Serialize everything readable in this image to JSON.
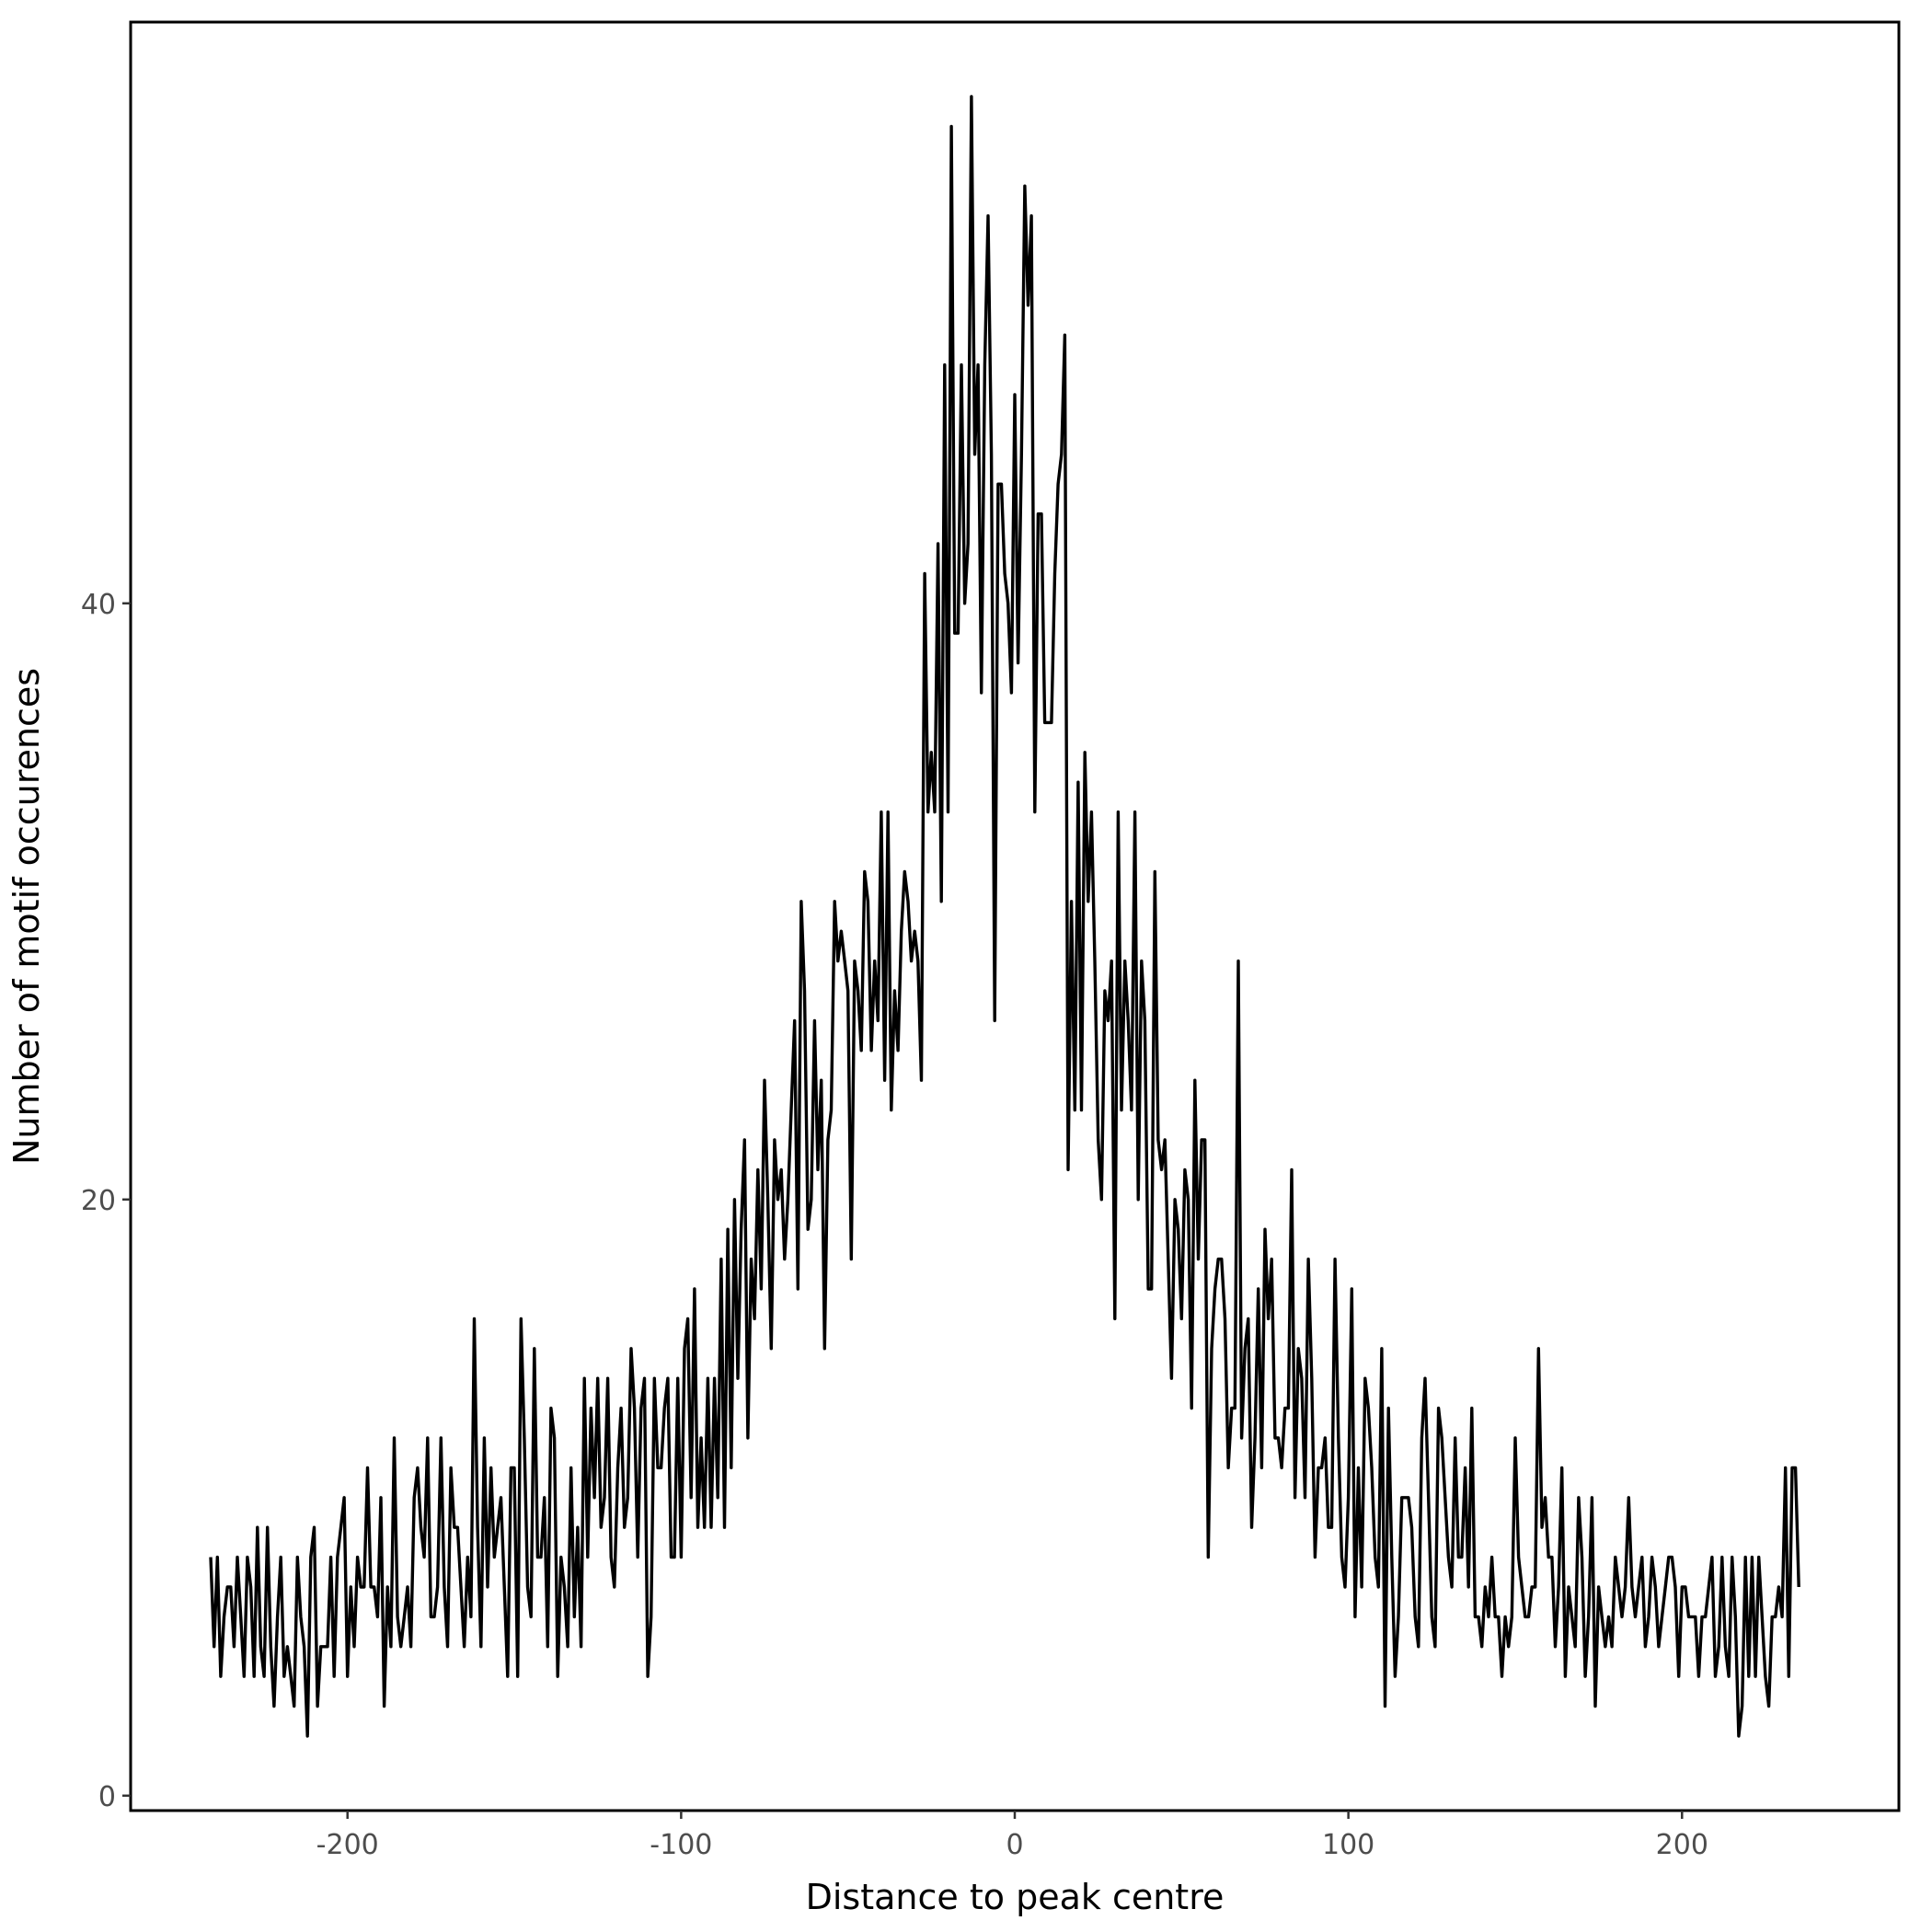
{
  "chart_data": {
    "type": "line",
    "title": "",
    "xlabel": "Distance to peak centre",
    "ylabel": "Number of motif occurences",
    "xlim": [
      -265,
      265
    ],
    "ylim": [
      -0.5,
      59.5
    ],
    "xticks": [
      -200,
      -100,
      0,
      100,
      200
    ],
    "xtick_labels": [
      "-200",
      "-100",
      "0",
      "100",
      "200"
    ],
    "yticks": [
      0,
      20,
      40
    ],
    "ytick_labels": [
      "0",
      "20",
      "40"
    ],
    "grid": false,
    "legend": "none",
    "line_color": "#000000",
    "x_start": -241,
    "x_step": 1,
    "y": [
      8,
      5,
      8,
      4,
      6,
      7,
      7,
      5,
      8,
      6,
      4,
      8,
      7,
      4,
      9,
      5,
      4,
      9,
      5,
      3,
      6,
      8,
      4,
      5,
      4,
      3,
      8,
      6,
      5,
      2,
      8,
      9,
      3,
      5,
      5,
      5,
      8,
      4,
      8,
      9,
      10,
      4,
      7,
      5,
      8,
      7,
      7,
      11,
      7,
      7,
      6,
      10,
      3,
      7,
      5,
      12,
      6,
      5,
      6,
      7,
      5,
      10,
      11,
      9,
      8,
      12,
      6,
      6,
      7,
      12,
      7,
      5,
      11,
      9,
      9,
      7,
      5,
      8,
      6,
      16,
      9,
      5,
      12,
      7,
      11,
      8,
      9,
      10,
      7,
      4,
      11,
      11,
      4,
      16,
      12,
      7,
      6,
      15,
      8,
      8,
      10,
      5,
      13,
      12,
      4,
      8,
      7,
      5,
      11,
      6,
      9,
      5,
      14,
      8,
      13,
      10,
      14,
      9,
      10,
      14,
      8,
      7,
      11,
      13,
      9,
      10,
      15,
      13,
      8,
      13,
      14,
      4,
      6,
      14,
      11,
      11,
      13,
      14,
      8,
      8,
      14,
      8,
      15,
      16,
      10,
      17,
      9,
      12,
      9,
      14,
      9,
      14,
      10,
      18,
      9,
      19,
      11,
      20,
      14,
      19,
      22,
      12,
      18,
      16,
      21,
      17,
      24,
      20,
      15,
      22,
      20,
      21,
      18,
      20,
      23,
      26,
      17,
      30,
      27,
      19,
      20,
      26,
      21,
      24,
      15,
      22,
      23,
      30,
      28,
      29,
      28,
      27,
      18,
      28,
      27,
      25,
      31,
      30,
      25,
      28,
      26,
      33,
      24,
      33,
      23,
      27,
      25,
      29,
      31,
      30,
      28,
      29,
      28,
      24,
      41,
      33,
      35,
      33,
      42,
      30,
      48,
      33,
      56,
      39,
      39,
      48,
      40,
      42,
      57,
      45,
      48,
      37,
      48,
      53,
      45,
      26,
      44,
      44,
      41,
      40,
      37,
      47,
      38,
      45,
      54,
      50,
      53,
      33,
      43,
      43,
      36,
      36,
      36,
      41,
      44,
      45,
      49,
      21,
      30,
      23,
      34,
      23,
      35,
      30,
      33,
      28,
      22,
      20,
      27,
      26,
      28,
      16,
      33,
      23,
      28,
      26,
      23,
      33,
      20,
      28,
      26,
      17,
      17,
      31,
      22,
      21,
      22,
      18,
      14,
      20,
      19,
      16,
      21,
      20,
      13,
      24,
      18,
      22,
      22,
      8,
      15,
      17,
      18,
      18,
      16,
      11,
      13,
      13,
      28,
      12,
      15,
      16,
      9,
      12,
      17,
      11,
      19,
      16,
      18,
      12,
      12,
      11,
      13,
      13,
      21,
      10,
      15,
      14,
      10,
      18,
      14,
      8,
      11,
      11,
      12,
      9,
      9,
      18,
      12,
      8,
      7,
      10,
      17,
      6,
      11,
      7,
      14,
      13,
      11,
      8,
      7,
      15,
      3,
      13,
      8,
      4,
      6,
      10,
      10,
      10,
      9,
      6,
      5,
      12,
      14,
      10,
      6,
      5,
      13,
      12,
      10,
      8,
      7,
      12,
      8,
      8,
      11,
      7,
      13,
      6,
      6,
      5,
      7,
      6,
      8,
      6,
      6,
      4,
      6,
      5,
      6,
      12,
      8,
      7,
      6,
      6,
      7,
      7,
      15,
      9,
      10,
      8,
      8,
      5,
      7,
      11,
      4,
      7,
      6,
      5,
      10,
      8,
      4,
      6,
      10,
      3,
      7,
      6,
      5,
      6,
      5,
      8,
      7,
      6,
      7,
      10,
      7,
      6,
      7,
      8,
      5,
      6,
      8,
      7,
      5,
      6,
      7,
      8,
      8,
      7,
      4,
      7,
      7,
      6,
      6,
      6,
      4,
      6,
      6,
      7,
      8,
      4,
      5,
      8,
      5,
      4,
      8,
      6,
      2,
      3,
      8,
      4,
      8,
      4,
      8,
      6,
      4,
      3,
      6,
      6,
      7,
      6,
      11,
      4,
      11,
      11,
      7
    ]
  }
}
